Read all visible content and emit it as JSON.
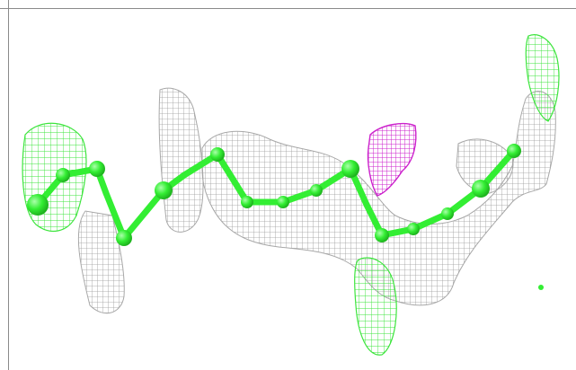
{
  "viewer": {
    "colors": {
      "background": "#ffffff",
      "frame_line": "#8a8a8a",
      "density_mesh_gray": "#9a9a9a",
      "difference_map_positive": "#3de53d",
      "difference_map_negative": "#cc22cc",
      "ligand_model": "#33ee33"
    }
  }
}
